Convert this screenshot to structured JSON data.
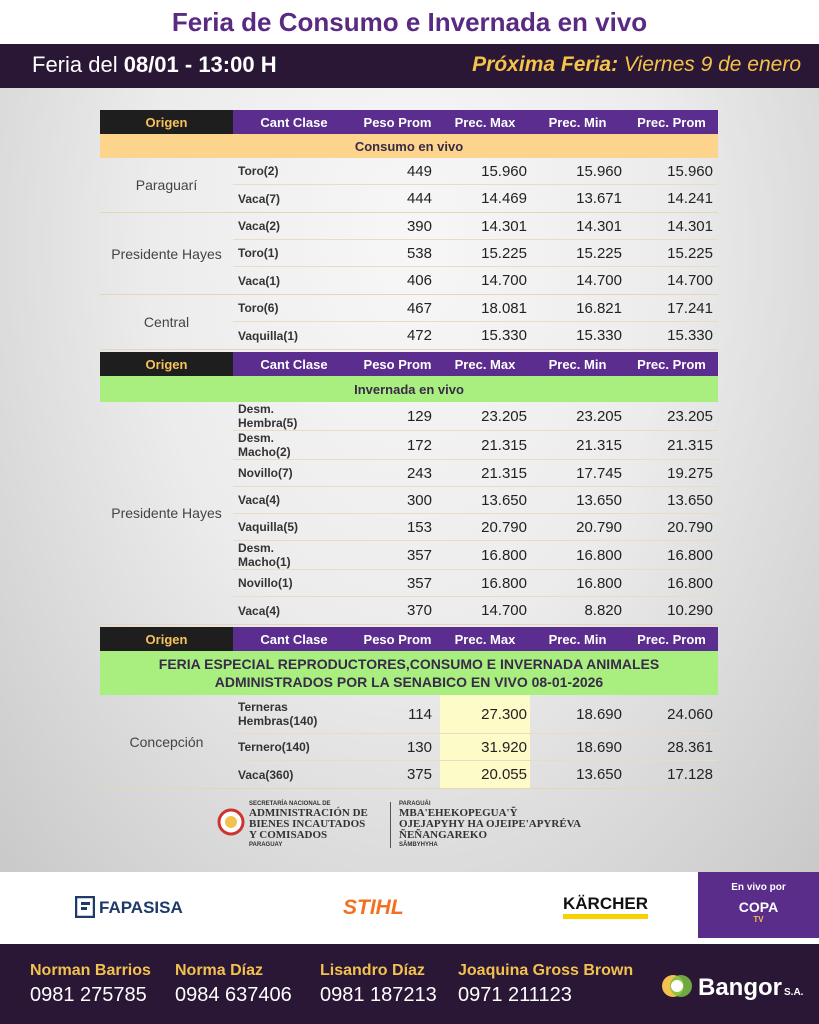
{
  "header": {
    "title": "Feria de Consumo e Invernada en vivo",
    "date_prefix": "Feria del",
    "date": "08/01 - 13:00 H",
    "next_label": "Próxima Feria:",
    "next_date": "Viernes 9 de enero"
  },
  "table": {
    "sections": [
      {
        "columns": [
          "Origen",
          "Cant Clase",
          "Peso Prom",
          "Prec. Max",
          "Prec. Min",
          "Prec. Prom"
        ],
        "label": [
          "Consumo en vivo"
        ],
        "groups": [
          {
            "origin": "Paraguarí",
            "rows": [
              [
                "Toro(2)",
                "449",
                "15.960",
                "15.960",
                "15.960"
              ],
              [
                "Vaca(7)",
                "444",
                "14.469",
                "13.671",
                "14.241"
              ]
            ]
          },
          {
            "origin": "Presidente Hayes",
            "rows": [
              [
                "Vaca(2)",
                "390",
                "14.301",
                "14.301",
                "14.301"
              ],
              [
                "Toro(1)",
                "538",
                "15.225",
                "15.225",
                "15.225"
              ],
              [
                "Vaca(1)",
                "406",
                "14.700",
                "14.700",
                "14.700"
              ]
            ]
          },
          {
            "origin": "Central",
            "rows": [
              [
                "Toro(6)",
                "467",
                "18.081",
                "16.821",
                "17.241"
              ],
              [
                "Vaquilla(1)",
                "472",
                "15.330",
                "15.330",
                "15.330"
              ]
            ]
          }
        ]
      },
      {
        "columns": [
          "Origen",
          "Cant Clase",
          "Peso Prom",
          "Prec. Max",
          "Prec. Min",
          "Prec. Prom"
        ],
        "label": [
          "Invernada en vivo"
        ],
        "groups": [
          {
            "origin": "Presidente Hayes",
            "rows": [
              [
                "Desm. Hembra(5)",
                "129",
                "23.205",
                "23.205",
                "23.205"
              ],
              [
                "Desm. Macho(2)",
                "172",
                "21.315",
                "21.315",
                "21.315"
              ],
              [
                "Novillo(7)",
                "243",
                "21.315",
                "17.745",
                "19.275"
              ],
              [
                "Vaca(4)",
                "300",
                "13.650",
                "13.650",
                "13.650"
              ],
              [
                "Vaquilla(5)",
                "153",
                "20.790",
                "20.790",
                "20.790"
              ],
              [
                "Desm. Macho(1)",
                "357",
                "16.800",
                "16.800",
                "16.800"
              ],
              [
                "Novillo(1)",
                "357",
                "16.800",
                "16.800",
                "16.800"
              ],
              [
                "Vaca(4)",
                "370",
                "14.700",
                "8.820",
                "10.290"
              ]
            ]
          }
        ]
      },
      {
        "columns": [
          "Origen",
          "Cant Clase",
          "Peso Prom",
          "Prec. Max",
          "Prec. Min",
          "Prec. Prom"
        ],
        "label": [
          "FERIA  ESPECIAL REPRODUCTORES,CONSUMO E INVERNADA ANIMALES",
          "ADMINISTRADOS POR LA SENABICO EN VIVO 08-01-2026"
        ],
        "groups": [
          {
            "origin": "Concepción",
            "rows": [
              [
                "Terneras Hembras(140)",
                "114",
                "27.300",
                "18.690",
                "24.060"
              ],
              [
                "Ternero(140)",
                "130",
                "31.920",
                "18.690",
                "28.361"
              ],
              [
                "Vaca(360)",
                "375",
                "20.055",
                "13.650",
                "17.128"
              ]
            ]
          }
        ]
      }
    ]
  },
  "institutions": {
    "left": [
      "SECRETARÍA NACIONAL DE",
      "ADMINISTRACIÓN DE",
      "BIENES INCAUTADOS",
      "Y COMISADOS",
      "PARAGUAY"
    ],
    "right": [
      "PARAGUÁI",
      "MBA'EHEKOPEGUA'Ỹ",
      "OJEJAPYHY HA OJEIPE'APYRÉVA",
      "ÑEÑANGAREKO",
      "SÂMBYHYHA"
    ]
  },
  "sponsors": {
    "fapasisa": "FAPASISA",
    "stihl": "STIHL",
    "karcher": "KÄRCHER",
    "live_by": "En vivo por",
    "copa": "COPA",
    "tv": "TV"
  },
  "contacts": [
    {
      "name": "Norman Barrios",
      "phone": "0981 275785"
    },
    {
      "name": "Norma Díaz",
      "phone": "0984 637406"
    },
    {
      "name": "Lisandro Díaz",
      "phone": "0981 187213"
    },
    {
      "name": "Joaquina Gross Brown",
      "phone": "0971 211123"
    }
  ],
  "brand": {
    "name": "Bangor",
    "suffix": "S.A."
  }
}
